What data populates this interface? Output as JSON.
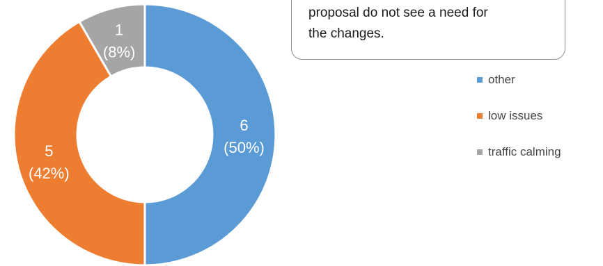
{
  "callout": {
    "line1": "proposal do not see a need for",
    "line2": "the changes."
  },
  "chart_data": {
    "type": "pie",
    "donut": true,
    "title": "",
    "legend_position": "right",
    "series": [
      {
        "name": "",
        "slices": [
          {
            "label": "other",
            "value": 6,
            "percent_label": "(50%)",
            "value_label": "6",
            "color": "#5b9bd5"
          },
          {
            "label": "low issues",
            "value": 5,
            "percent_label": "(42%)",
            "value_label": "5",
            "color": "#ed7d31"
          },
          {
            "label": "traffic calming",
            "value": 1,
            "percent_label": "(8%)",
            "value_label": "1",
            "color": "#a5a5a5"
          }
        ]
      }
    ]
  }
}
